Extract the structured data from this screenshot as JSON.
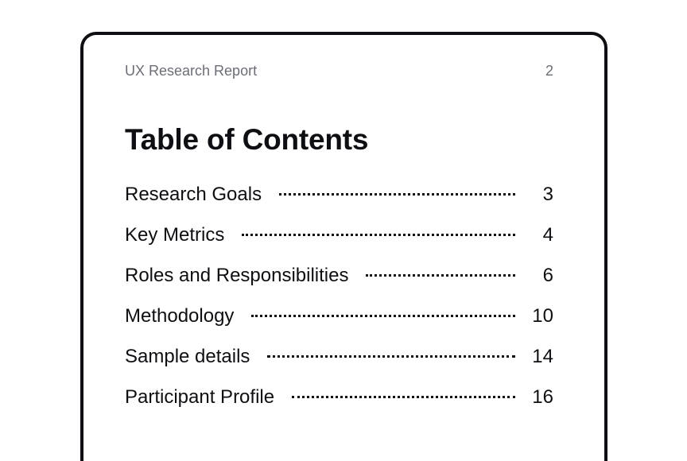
{
  "header": {
    "report_title": "UX Research Report",
    "page_number": "2"
  },
  "title": "Table of Contents",
  "toc": [
    {
      "label": "Research Goals",
      "page": "3"
    },
    {
      "label": "Key Metrics",
      "page": "4"
    },
    {
      "label": "Roles and Responsibilities",
      "page": "6"
    },
    {
      "label": "Methodology",
      "page": "10"
    },
    {
      "label": "Sample details",
      "page": "14"
    },
    {
      "label": "Participant Profile",
      "page": "16"
    }
  ]
}
